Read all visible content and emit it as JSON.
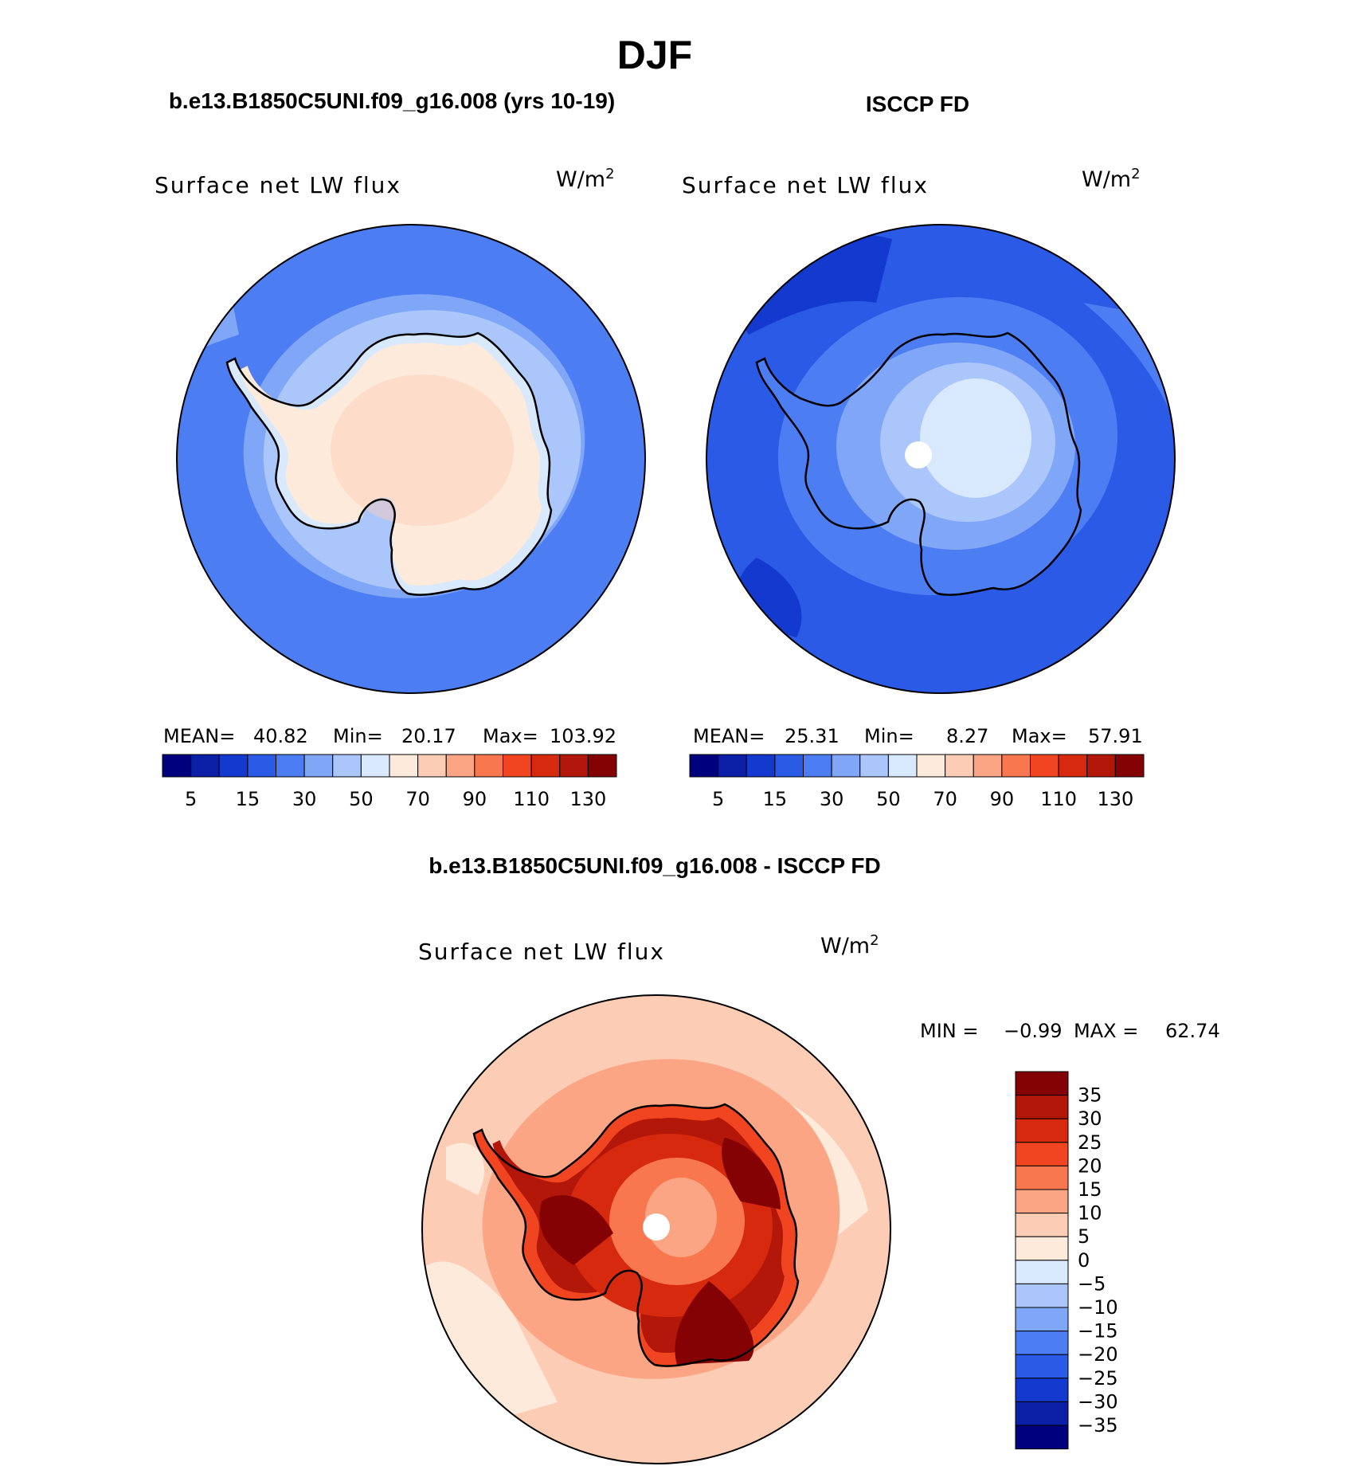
{
  "figure": {
    "season": "DJF",
    "units_prefix": "W/m",
    "units_exp": "2"
  },
  "panels": [
    {
      "title": "b.e13.B1850C5UNI.f09_g16.008 (yrs 10-19)",
      "variable": "Surface net LW flux",
      "stats": {
        "mean_label": "MEAN=",
        "mean": "40.82",
        "min_label": "Min=",
        "min": "20.17",
        "max_label": "Max=",
        "max": "103.92"
      }
    },
    {
      "title": "ISCCP FD",
      "variable": "Surface net LW flux",
      "stats": {
        "mean_label": "MEAN=",
        "mean": "25.31",
        "min_label": "Min=",
        "min": "8.27",
        "max_label": "Max=",
        "max": "57.91"
      }
    },
    {
      "title": "b.e13.B1850C5UNI.f09_g16.008 - ISCCP FD",
      "variable": "Surface net LW flux",
      "stats": {
        "min_label": "MIN =",
        "min": "−0.99",
        "max_label": "MAX =",
        "max": "62.74"
      }
    }
  ],
  "abs_colorbar": {
    "colors": [
      "#00007e",
      "#0a1ea6",
      "#1439cf",
      "#2a5ae6",
      "#4d7df2",
      "#7fa6f7",
      "#aac6fb",
      "#d8e8fd",
      "#fdeada",
      "#fcccb4",
      "#fba585",
      "#f9774e",
      "#f04520",
      "#d7290e",
      "#b2170a",
      "#850204"
    ],
    "tick_labels": [
      "5",
      "15",
      "30",
      "50",
      "70",
      "90",
      "110",
      "130"
    ]
  },
  "diff_colorbar": {
    "colors": [
      "#850204",
      "#b2170a",
      "#d7290e",
      "#f04520",
      "#f9774e",
      "#fba585",
      "#fcccb4",
      "#fdeada",
      "#d8e8fd",
      "#aac6fb",
      "#7fa6f7",
      "#4d7df2",
      "#2a5ae6",
      "#1439cf",
      "#0a1ea6",
      "#00007e"
    ],
    "tick_labels": [
      "35",
      "30",
      "25",
      "20",
      "15",
      "10",
      "5",
      "0",
      "−5",
      "−10",
      "−15",
      "−20",
      "−25",
      "−30",
      "−35"
    ]
  }
}
